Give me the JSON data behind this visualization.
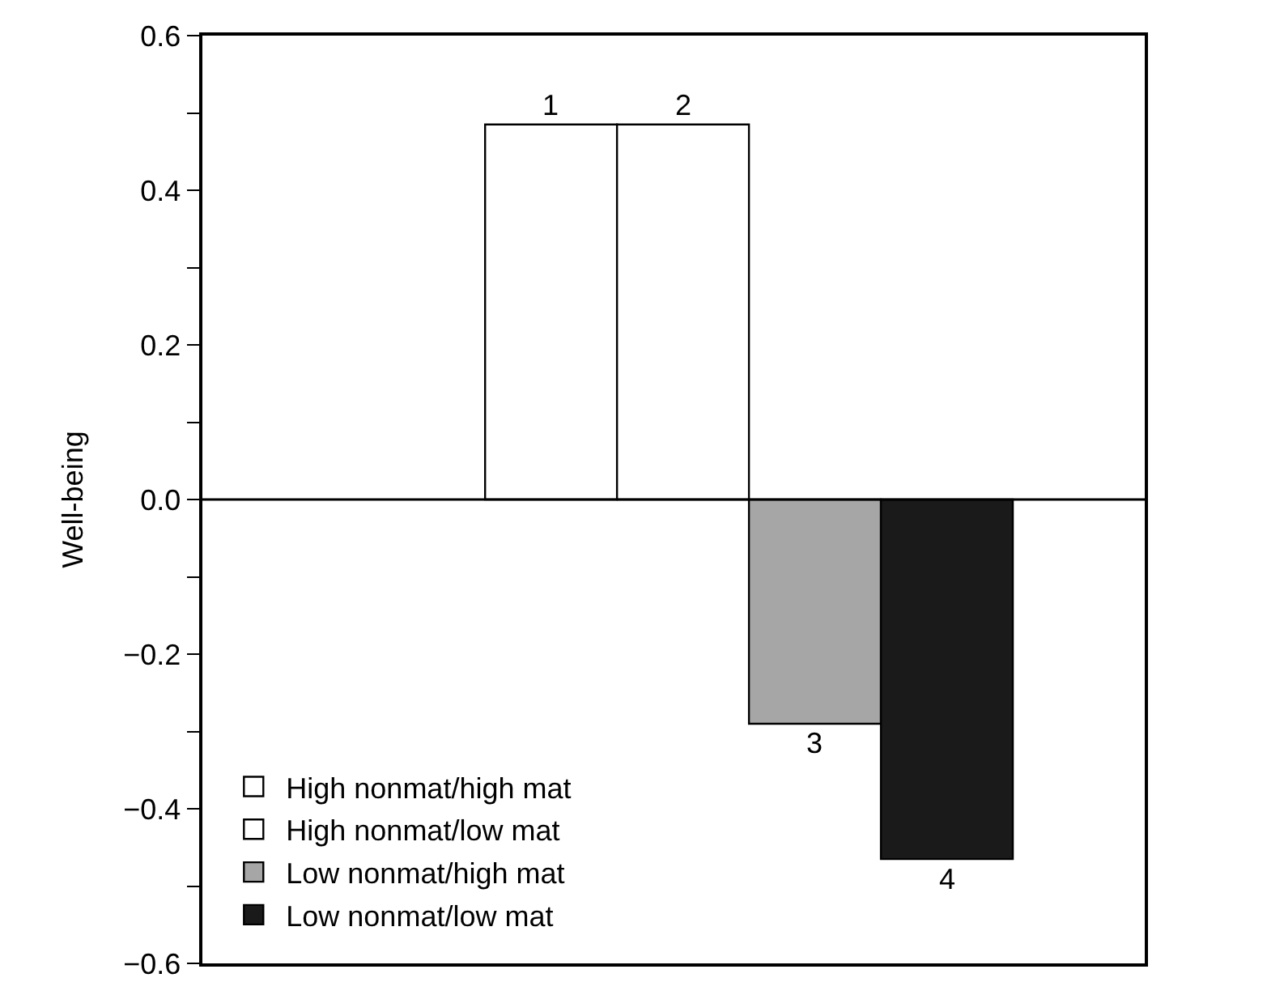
{
  "chart_data": {
    "type": "bar",
    "ylabel": "Well-being",
    "categories": [
      null
    ],
    "series": [
      {
        "name": "High nonmat/high mat",
        "color": "#ffffff",
        "values": [
          0.485
        ]
      },
      {
        "name": "High nonmat/low mat",
        "color": "#ffffff",
        "values": [
          0.485
        ]
      },
      {
        "name": "Low nonmat/high mat",
        "color": "#a6a6a6",
        "values": [
          -0.29
        ]
      },
      {
        "name": "Low nonmat/low mat",
        "color": "#1a1a1a",
        "values": [
          -0.465
        ]
      }
    ],
    "annotations": [
      {
        "text": "1",
        "y": 0.485
      },
      {
        "text": "2",
        "y": 0.485
      },
      {
        "text": "3",
        "y": -0.29
      },
      {
        "text": "4",
        "y": -0.465
      }
    ],
    "ylim": [
      -0.6,
      0.6
    ],
    "yticks": [
      {
        "value": -0.6,
        "label": "−0.6"
      },
      {
        "value": -0.5,
        "label": null
      },
      {
        "value": -0.4,
        "label": "−0.4"
      },
      {
        "value": -0.3,
        "label": null
      },
      {
        "value": -0.2,
        "label": "−0.2"
      },
      {
        "value": -0.1,
        "label": null
      },
      {
        "value": 0,
        "label": "0.0"
      },
      {
        "value": 0.1,
        "label": null
      },
      0.2,
      {
        "value": 0.3,
        "label": null
      },
      0.4,
      {
        "value": 0.5,
        "label": null
      },
      0.6
    ],
    "ref_lines": [
      {
        "axis": "y",
        "value": 0,
        "color": "#000000"
      }
    ],
    "legend": "bottom left"
  }
}
